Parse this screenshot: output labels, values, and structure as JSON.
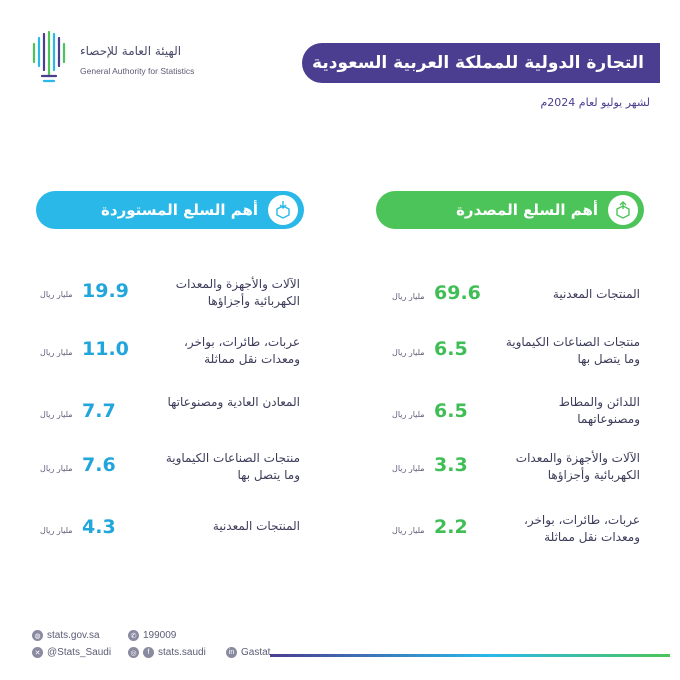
{
  "logo": {
    "name_ar": "الهيئة العامة للإحصاء",
    "name_en": "General Authority for Statistics"
  },
  "header": {
    "title": "التجارة الدولية للمملكة العربية السعودية",
    "subtitle": "لشهر يوليو لعام 2024م"
  },
  "exports": {
    "heading": "أهم السلع المصدرة",
    "color": "#4cc459",
    "items": [
      {
        "label": "المنتجات المعدنية",
        "value": "69.6",
        "unit": "مليار ريال"
      },
      {
        "label": "منتجات الصناعات الكيماوية وما يتصل بها",
        "value": "6.5",
        "unit": "مليار ريال"
      },
      {
        "label": "اللدائن والمطاط ومصنوعاتهما",
        "value": "6.5",
        "unit": "مليار ريال"
      },
      {
        "label": "الآلات والأجهزة والمعدات الكهربائية وأجزاؤها",
        "value": "3.3",
        "unit": "مليار ريال"
      },
      {
        "label": "عربات، طائرات، بواخر، ومعدات نقل مماثلة",
        "value": "2.2",
        "unit": "مليار ريال"
      }
    ]
  },
  "imports": {
    "heading": "أهم السلع المستوردة",
    "color": "#29b8e8",
    "items": [
      {
        "label": "الآلات والأجهزة والمعدات الكهربائية وأجزاؤها",
        "value": "19.9",
        "unit": "مليار ريال"
      },
      {
        "label": "عربات، طائرات، بواخر، ومعدات نقل مماثلة",
        "value": "11.0",
        "unit": "مليار ريال"
      },
      {
        "label": "المعادن العادية ومصنوعاتها",
        "value": "7.7",
        "unit": "مليار ريال"
      },
      {
        "label": "منتجات الصناعات الكيماوية وما يتصل بها",
        "value": "7.6",
        "unit": "مليار ريال"
      },
      {
        "label": "المنتجات المعدنية",
        "value": "4.3",
        "unit": "مليار ريال"
      }
    ]
  },
  "footer": {
    "website": "stats.gov.sa",
    "phone": "199009",
    "twitter": "@Stats_Saudi",
    "social": "stats.saudi",
    "linkedin": "Gastat",
    "icons": {
      "website": "globe-icon",
      "phone": "phone-icon",
      "twitter": "x-icon",
      "social": "instagram-facebook-icon",
      "linkedin": "linkedin-icon"
    }
  }
}
